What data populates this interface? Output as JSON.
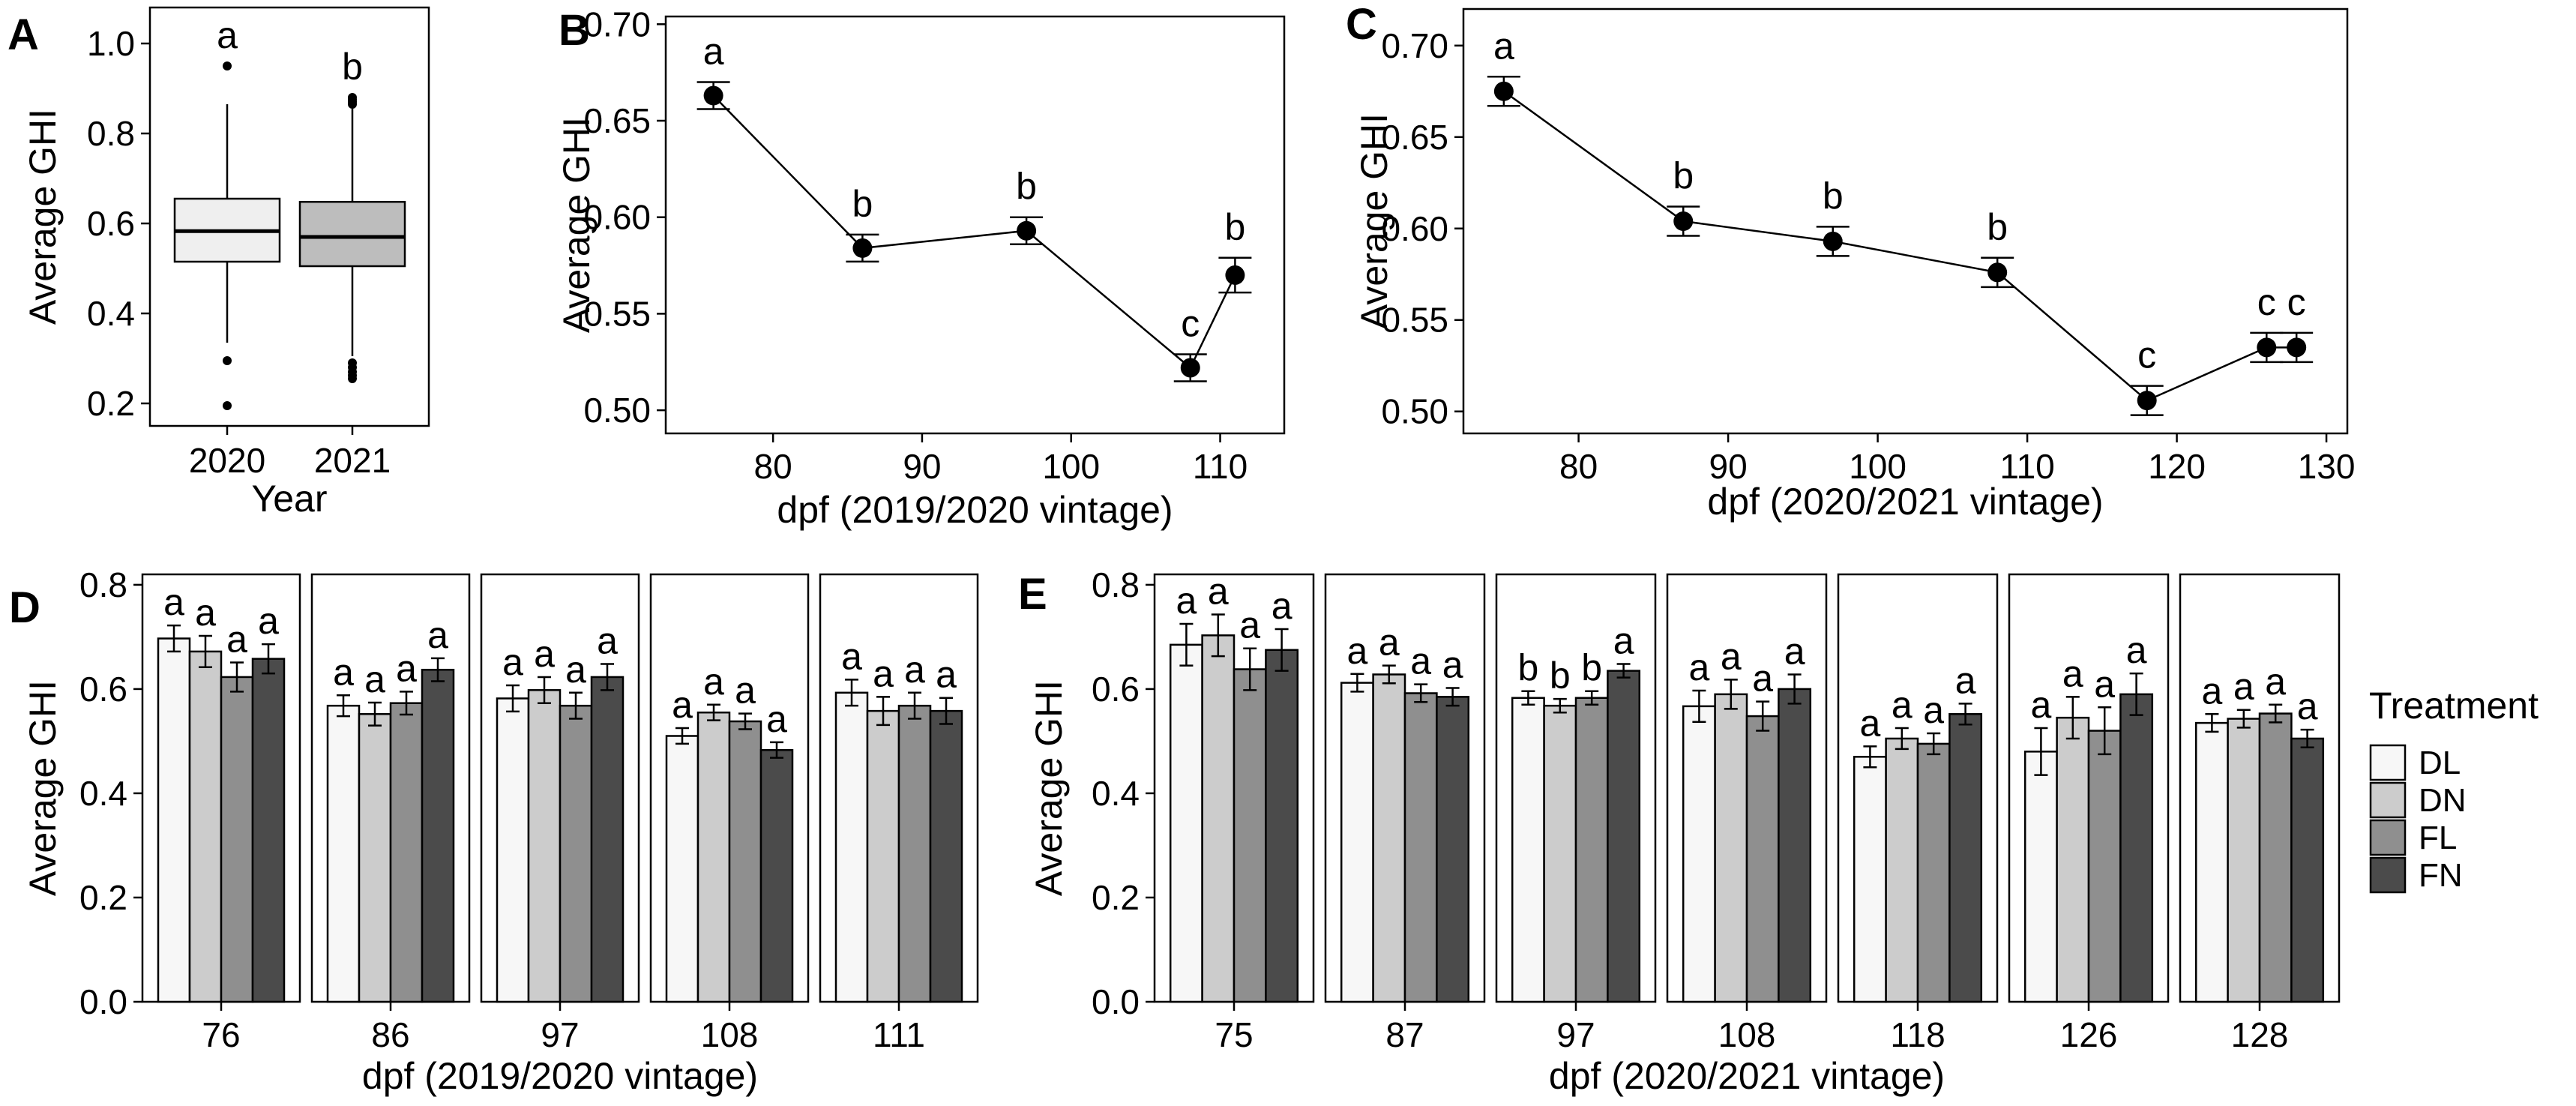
{
  "chart_data": [
    {
      "panel": "A",
      "type": "box",
      "xlabel": "Year",
      "ylabel": "Average GHI",
      "ylim": [
        0.15,
        1.08
      ],
      "yticks": [
        "0.2",
        "0.4",
        "0.6",
        "0.8",
        "1.0"
      ],
      "categories": [
        "2020",
        "2021"
      ],
      "fills": [
        "#efefef",
        "#bdbdbd"
      ],
      "boxes": [
        {
          "q1": 0.515,
          "median": 0.583,
          "q3": 0.655,
          "whisker_low": 0.335,
          "whisker_high": 0.865,
          "outliers": [
            0.95,
            0.295,
            0.195
          ]
        },
        {
          "q1": 0.505,
          "median": 0.57,
          "q3": 0.648,
          "whisker_low": 0.305,
          "whisker_high": 0.855,
          "outliers": [
            0.88,
            0.875,
            0.87,
            0.865,
            0.29,
            0.28,
            0.27,
            0.262,
            0.255
          ]
        }
      ],
      "letters": [
        "a",
        "b"
      ],
      "grid": false
    },
    {
      "panel": "B",
      "type": "line",
      "xlabel": "dpf (2019/2020 vintage)",
      "ylabel": "Average GHI",
      "xlim": [
        72.8,
        114.3
      ],
      "ylim": [
        0.488,
        0.704
      ],
      "xticks": [
        "80",
        "90",
        "100",
        "110"
      ],
      "yticks": [
        "0.50",
        "0.55",
        "0.60",
        "0.65",
        "0.70"
      ],
      "x": [
        76,
        86,
        97,
        108,
        111
      ],
      "y": [
        0.663,
        0.584,
        0.593,
        0.522,
        0.57
      ],
      "err": [
        0.007,
        0.007,
        0.007,
        0.007,
        0.009
      ],
      "letters": [
        "a",
        "b",
        "b",
        "c",
        "b"
      ],
      "grid": false
    },
    {
      "panel": "C",
      "type": "line",
      "xlabel": "dpf (2020/2021 vintage)",
      "ylabel": "Average GHI",
      "xlim": [
        72.3,
        131.4
      ],
      "ylim": [
        0.488,
        0.72
      ],
      "xticks": [
        "80",
        "90",
        "100",
        "110",
        "120",
        "130"
      ],
      "yticks": [
        "0.50",
        "0.55",
        "0.60",
        "0.65",
        "0.70"
      ],
      "x": [
        75,
        87,
        97,
        108,
        118,
        126,
        128
      ],
      "y": [
        0.675,
        0.604,
        0.593,
        0.576,
        0.506,
        0.535,
        0.535
      ],
      "err": [
        0.008,
        0.008,
        0.008,
        0.008,
        0.008,
        0.008,
        0.008
      ],
      "letters": [
        "a",
        "b",
        "b",
        "b",
        "c",
        "c",
        "c"
      ],
      "grid": false
    },
    {
      "panel": "D",
      "type": "bar",
      "xlabel": "dpf (2019/2020 vintage)",
      "ylabel": "Average GHI",
      "ylim": [
        0,
        0.82
      ],
      "yticks": [
        "0.0",
        "0.2",
        "0.4",
        "0.6",
        "0.8"
      ],
      "facets": [
        "76",
        "86",
        "97",
        "108",
        "111"
      ],
      "series": [
        {
          "name": "DL",
          "values": [
            0.697,
            0.568,
            0.582,
            0.51,
            0.593
          ],
          "err": [
            0.025,
            0.02,
            0.025,
            0.015,
            0.025
          ]
        },
        {
          "name": "DN",
          "values": [
            0.672,
            0.552,
            0.598,
            0.555,
            0.558
          ],
          "err": [
            0.03,
            0.022,
            0.025,
            0.015,
            0.027
          ]
        },
        {
          "name": "FL",
          "values": [
            0.623,
            0.573,
            0.568,
            0.538,
            0.568
          ],
          "err": [
            0.028,
            0.022,
            0.025,
            0.015,
            0.025
          ]
        },
        {
          "name": "FN",
          "values": [
            0.658,
            0.637,
            0.623,
            0.483,
            0.558
          ],
          "err": [
            0.028,
            0.022,
            0.025,
            0.015,
            0.025
          ]
        }
      ],
      "letters": [
        [
          "a",
          "a",
          "a",
          "a"
        ],
        [
          "a",
          "a",
          "a",
          "a"
        ],
        [
          "a",
          "a",
          "a",
          "a"
        ],
        [
          "a",
          "a",
          "a",
          "a"
        ],
        [
          "a",
          "a",
          "a",
          "a"
        ]
      ],
      "grid": false
    },
    {
      "panel": "E",
      "type": "bar",
      "xlabel": "dpf (2020/2021 vintage)",
      "ylabel": "Average GHI",
      "ylim": [
        0,
        0.82
      ],
      "yticks": [
        "0.0",
        "0.2",
        "0.4",
        "0.6",
        "0.8"
      ],
      "facets": [
        "75",
        "87",
        "97",
        "108",
        "118",
        "126",
        "128"
      ],
      "series": [
        {
          "name": "DL",
          "values": [
            0.685,
            0.612,
            0.583,
            0.567,
            0.47,
            0.48,
            0.535
          ],
          "err": [
            0.04,
            0.017,
            0.013,
            0.03,
            0.02,
            0.045,
            0.017
          ]
        },
        {
          "name": "DN",
          "values": [
            0.703,
            0.628,
            0.568,
            0.59,
            0.505,
            0.545,
            0.543
          ],
          "err": [
            0.04,
            0.017,
            0.013,
            0.028,
            0.02,
            0.04,
            0.017
          ]
        },
        {
          "name": "FL",
          "values": [
            0.638,
            0.592,
            0.583,
            0.548,
            0.495,
            0.52,
            0.553
          ],
          "err": [
            0.04,
            0.017,
            0.013,
            0.028,
            0.02,
            0.045,
            0.017
          ]
        },
        {
          "name": "FN",
          "values": [
            0.675,
            0.585,
            0.635,
            0.6,
            0.552,
            0.59,
            0.505
          ],
          "err": [
            0.04,
            0.017,
            0.013,
            0.028,
            0.02,
            0.04,
            0.017
          ]
        }
      ],
      "letters": [
        [
          "a",
          "a",
          "a",
          "a"
        ],
        [
          "a",
          "a",
          "a",
          "a"
        ],
        [
          "b",
          "b",
          "b",
          "a"
        ],
        [
          "a",
          "a",
          "a",
          "a"
        ],
        [
          "a",
          "a",
          "a",
          "a"
        ],
        [
          "a",
          "a",
          "a",
          "a"
        ],
        [
          "a",
          "a",
          "a",
          "a"
        ]
      ],
      "grid": false
    }
  ],
  "legend": {
    "title": "Treatment",
    "position": "right",
    "items": [
      {
        "label": "DL",
        "color": "#f7f7f7"
      },
      {
        "label": "DN",
        "color": "#cccccc"
      },
      {
        "label": "FL",
        "color": "#8f8f8f"
      },
      {
        "label": "FN",
        "color": "#4b4b4b"
      }
    ]
  },
  "bar_colors": [
    "#f7f7f7",
    "#cccccc",
    "#8f8f8f",
    "#4b4b4b"
  ]
}
